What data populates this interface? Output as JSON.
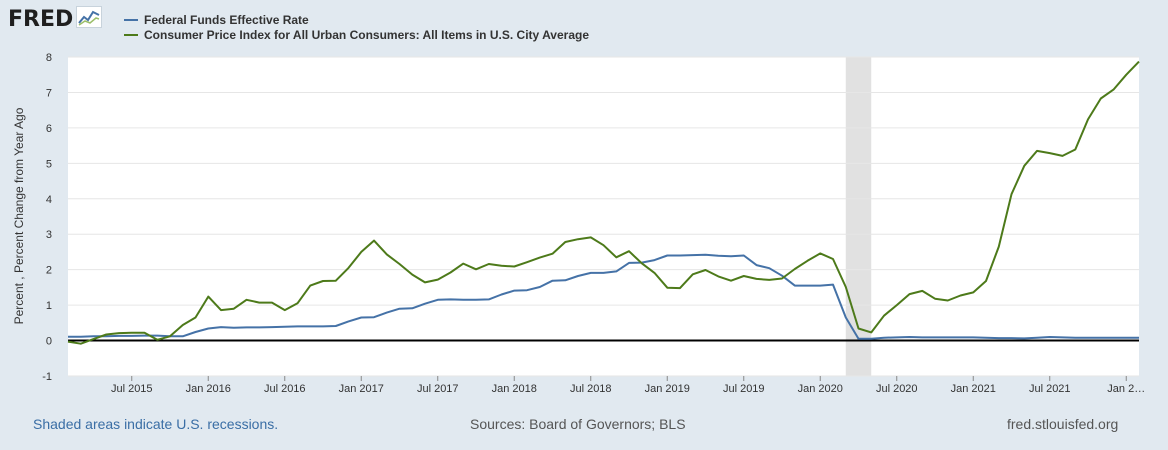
{
  "logo": {
    "text": "FRED",
    "icon": "line-chart-icon"
  },
  "footer": {
    "left": "Shaded areas indicate U.S. recessions.",
    "middle": "Sources: Board of Governors; BLS",
    "right": "fred.stlouisfed.org"
  },
  "colors": {
    "background": "#e1e9f0",
    "plot_bg": "#ffffff",
    "fed_funds": "#4572a7",
    "cpi": "#4d7a1a",
    "recession": "#e1e1e1",
    "zero_line": "#000000"
  },
  "chart_data": {
    "type": "line",
    "title": "",
    "xlabel": "",
    "ylabel": "Percent , Percent Change from Year Ago",
    "ylim": [
      -1,
      8
    ],
    "yticks": [
      -1,
      0,
      1,
      2,
      3,
      4,
      5,
      6,
      7,
      8
    ],
    "xlim": [
      "2015-02",
      "2022-02"
    ],
    "grid": "horizontal",
    "legend_position": "top-left",
    "x_tick_labels": [
      {
        "date": "2015-07",
        "label": "Jul 2015"
      },
      {
        "date": "2016-01",
        "label": "Jan 2016"
      },
      {
        "date": "2016-07",
        "label": "Jul 2016"
      },
      {
        "date": "2017-01",
        "label": "Jan 2017"
      },
      {
        "date": "2017-07",
        "label": "Jul 2017"
      },
      {
        "date": "2018-01",
        "label": "Jan 2018"
      },
      {
        "date": "2018-07",
        "label": "Jul 2018"
      },
      {
        "date": "2019-01",
        "label": "Jan 2019"
      },
      {
        "date": "2019-07",
        "label": "Jul 2019"
      },
      {
        "date": "2020-01",
        "label": "Jan 2020"
      },
      {
        "date": "2020-07",
        "label": "Jul 2020"
      },
      {
        "date": "2021-01",
        "label": "Jan 2021"
      },
      {
        "date": "2021-07",
        "label": "Jul 2021"
      },
      {
        "date": "2022-01",
        "label": "Jan 2…"
      }
    ],
    "recessions": [
      {
        "start": "2020-03",
        "end": "2020-05"
      }
    ],
    "dates": [
      "2015-02",
      "2015-03",
      "2015-04",
      "2015-05",
      "2015-06",
      "2015-07",
      "2015-08",
      "2015-09",
      "2015-10",
      "2015-11",
      "2015-12",
      "2016-01",
      "2016-02",
      "2016-03",
      "2016-04",
      "2016-05",
      "2016-06",
      "2016-07",
      "2016-08",
      "2016-09",
      "2016-10",
      "2016-11",
      "2016-12",
      "2017-01",
      "2017-02",
      "2017-03",
      "2017-04",
      "2017-05",
      "2017-06",
      "2017-07",
      "2017-08",
      "2017-09",
      "2017-10",
      "2017-11",
      "2017-12",
      "2018-01",
      "2018-02",
      "2018-03",
      "2018-04",
      "2018-05",
      "2018-06",
      "2018-07",
      "2018-08",
      "2018-09",
      "2018-10",
      "2018-11",
      "2018-12",
      "2019-01",
      "2019-02",
      "2019-03",
      "2019-04",
      "2019-05",
      "2019-06",
      "2019-07",
      "2019-08",
      "2019-09",
      "2019-10",
      "2019-11",
      "2019-12",
      "2020-01",
      "2020-02",
      "2020-03",
      "2020-04",
      "2020-05",
      "2020-06",
      "2020-07",
      "2020-08",
      "2020-09",
      "2020-10",
      "2020-11",
      "2020-12",
      "2021-01",
      "2021-02",
      "2021-03",
      "2021-04",
      "2021-05",
      "2021-06",
      "2021-07",
      "2021-08",
      "2021-09",
      "2021-10",
      "2021-11",
      "2021-12",
      "2022-01",
      "2022-02"
    ],
    "series": [
      {
        "name": "Federal Funds Effective Rate",
        "color": "#4572a7",
        "values": [
          0.11,
          0.11,
          0.12,
          0.12,
          0.13,
          0.13,
          0.14,
          0.14,
          0.12,
          0.12,
          0.24,
          0.34,
          0.38,
          0.36,
          0.37,
          0.37,
          0.38,
          0.39,
          0.4,
          0.4,
          0.4,
          0.41,
          0.54,
          0.65,
          0.66,
          0.79,
          0.9,
          0.91,
          1.04,
          1.15,
          1.16,
          1.15,
          1.15,
          1.16,
          1.3,
          1.41,
          1.42,
          1.51,
          1.69,
          1.7,
          1.82,
          1.91,
          1.91,
          1.95,
          2.19,
          2.2,
          2.27,
          2.4,
          2.4,
          2.41,
          2.42,
          2.39,
          2.38,
          2.4,
          2.13,
          2.04,
          1.83,
          1.55,
          1.55,
          1.55,
          1.58,
          0.65,
          0.05,
          0.05,
          0.08,
          0.09,
          0.1,
          0.09,
          0.09,
          0.09,
          0.09,
          0.09,
          0.08,
          0.07,
          0.07,
          0.06,
          0.08,
          0.1,
          0.09,
          0.08,
          0.08,
          0.08,
          0.08,
          0.08,
          0.08
        ]
      },
      {
        "name": "Consumer Price Index for All Urban Consumers: All Items in U.S. City Average",
        "color": "#4d7a1a",
        "values": [
          -0.03,
          -0.09,
          0.04,
          0.17,
          0.21,
          0.22,
          0.22,
          0.02,
          0.12,
          0.44,
          0.65,
          1.24,
          0.86,
          0.9,
          1.15,
          1.07,
          1.07,
          0.86,
          1.05,
          1.55,
          1.68,
          1.69,
          2.05,
          2.5,
          2.82,
          2.43,
          2.16,
          1.86,
          1.64,
          1.72,
          1.92,
          2.17,
          2.01,
          2.16,
          2.11,
          2.09,
          2.21,
          2.34,
          2.45,
          2.78,
          2.86,
          2.91,
          2.69,
          2.35,
          2.52,
          2.18,
          1.91,
          1.49,
          1.48,
          1.87,
          1.99,
          1.81,
          1.69,
          1.82,
          1.74,
          1.71,
          1.75,
          2.02,
          2.25,
          2.46,
          2.3,
          1.51,
          0.34,
          0.23,
          0.7,
          1.0,
          1.31,
          1.4,
          1.18,
          1.13,
          1.27,
          1.36,
          1.68,
          2.65,
          4.13,
          4.93,
          5.35,
          5.29,
          5.21,
          5.39,
          6.24,
          6.83,
          7.08,
          7.5,
          7.87
        ]
      }
    ]
  }
}
